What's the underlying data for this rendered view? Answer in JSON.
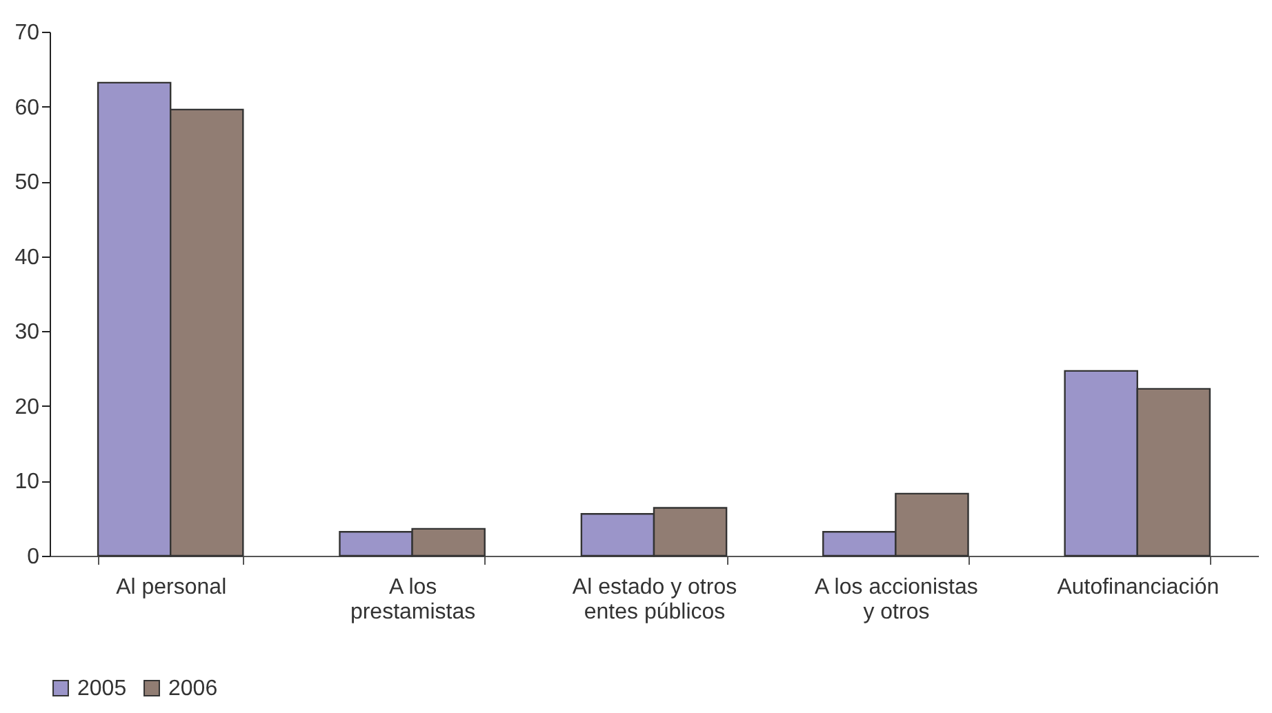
{
  "chart_data": {
    "type": "bar",
    "categories": [
      "Al personal",
      "A los\nprestamistas",
      "Al estado y otros\nentes públicos",
      "A los accionistas\ny otros",
      "Autofinanciación"
    ],
    "series": [
      {
        "name": "2005",
        "color": "#9b95c9",
        "values": [
          63.2,
          3.2,
          5.6,
          3.2,
          24.7
        ]
      },
      {
        "name": "2006",
        "color": "#917d73",
        "values": [
          59.6,
          3.6,
          6.4,
          8.3,
          22.3
        ]
      }
    ],
    "ylim": [
      0,
      70
    ],
    "yticks": [
      0,
      10,
      20,
      30,
      40,
      50,
      60,
      70
    ],
    "grid": false,
    "legend": "bottom"
  }
}
